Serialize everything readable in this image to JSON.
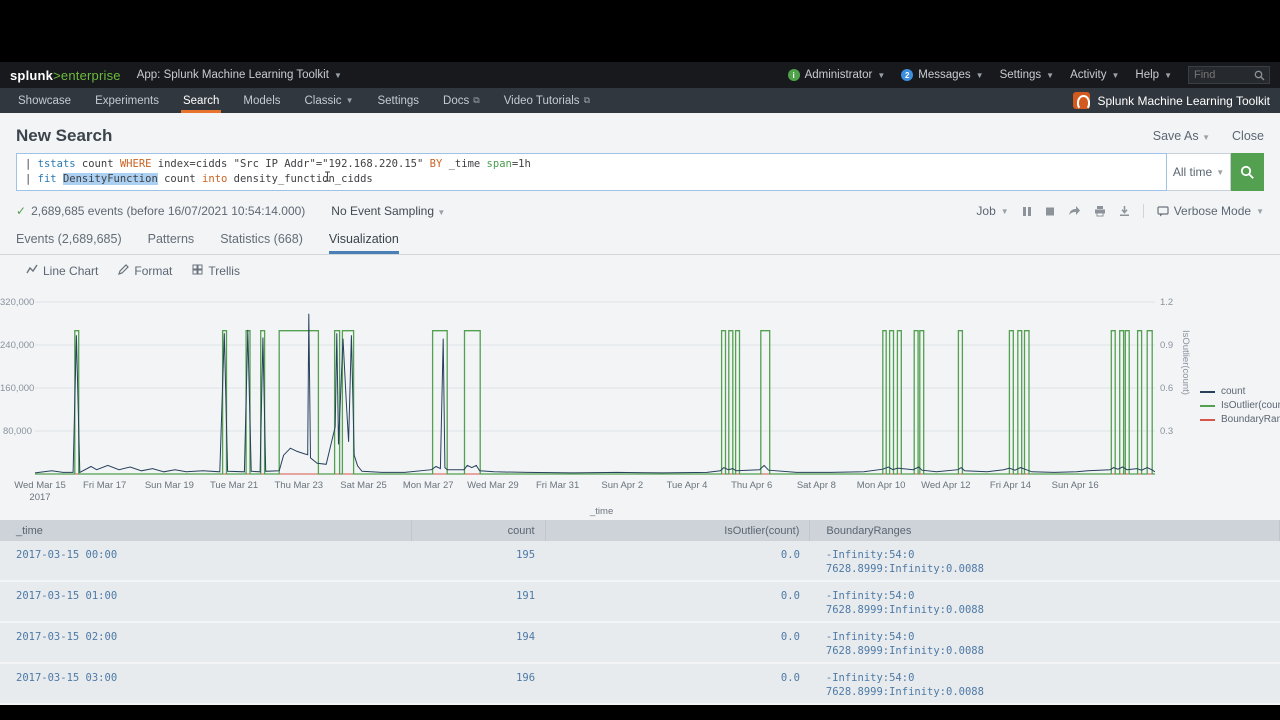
{
  "topbar": {
    "logo_main": "splunk",
    "logo_accent": ">enterprise",
    "app_menu": "App: Splunk Machine Learning Toolkit",
    "user_label": "Administrator",
    "messages_label": "Messages",
    "messages_count": "2",
    "settings_label": "Settings",
    "activity_label": "Activity",
    "help_label": "Help",
    "find_placeholder": "Find"
  },
  "navbar": {
    "items": [
      {
        "label": "Showcase",
        "active": false,
        "caret": false,
        "external": false
      },
      {
        "label": "Experiments",
        "active": false,
        "caret": false,
        "external": false
      },
      {
        "label": "Search",
        "active": true,
        "caret": false,
        "external": false
      },
      {
        "label": "Models",
        "active": false,
        "caret": false,
        "external": false
      },
      {
        "label": "Classic",
        "active": false,
        "caret": true,
        "external": false
      },
      {
        "label": "Settings",
        "active": false,
        "caret": false,
        "external": false
      },
      {
        "label": "Docs",
        "active": false,
        "caret": false,
        "external": true
      },
      {
        "label": "Video Tutorials",
        "active": false,
        "caret": false,
        "external": true
      }
    ],
    "brand": "Splunk Machine Learning Toolkit"
  },
  "page": {
    "title": "New Search",
    "save_as": "Save As",
    "close": "Close",
    "time_range": "All time",
    "events_summary": "2,689,685 events (before 16/07/2021 10:54:14.000)",
    "sampling": "No Event Sampling",
    "job_label": "Job",
    "verbose_label": "Verbose Mode",
    "tabs": [
      {
        "label": "Events (2,689,685)",
        "active": false
      },
      {
        "label": "Patterns",
        "active": false
      },
      {
        "label": "Statistics (668)",
        "active": false
      },
      {
        "label": "Visualization",
        "active": true
      }
    ],
    "controls": [
      {
        "label": "Line Chart",
        "icon": "line-chart-icon"
      },
      {
        "label": "Format",
        "icon": "pencil-icon"
      },
      {
        "label": "Trellis",
        "icon": "trellis-icon"
      }
    ]
  },
  "query": {
    "line1": [
      {
        "t": "| ",
        "c": "plain"
      },
      {
        "t": "tstats",
        "c": "cmd"
      },
      {
        "t": " count ",
        "c": "plain"
      },
      {
        "t": "WHERE",
        "c": "kw"
      },
      {
        "t": " index=cidds \"Src IP Addr\"=\"192.168.220.15\" ",
        "c": "plain"
      },
      {
        "t": "BY",
        "c": "kw"
      },
      {
        "t": " _time ",
        "c": "plain"
      },
      {
        "t": "span",
        "c": "fn"
      },
      {
        "t": "=1h",
        "c": "plain"
      }
    ],
    "line2": [
      {
        "t": "| ",
        "c": "plain"
      },
      {
        "t": "fit",
        "c": "cmd"
      },
      {
        "t": " ",
        "c": "plain"
      },
      {
        "t": "DensityFunction",
        "c": "sel"
      },
      {
        "t": " count ",
        "c": "plain"
      },
      {
        "t": "into",
        "c": "kw"
      },
      {
        "t": " density_function_cidds",
        "c": "plain"
      }
    ]
  },
  "chart_data": {
    "type": "line",
    "xlabel": "_time",
    "x_ticks": [
      "Wed Mar 15\n2017",
      "Fri Mar 17",
      "Sun Mar 19",
      "Tue Mar 21",
      "Thu Mar 23",
      "Sat Mar 25",
      "Mon Mar 27",
      "Wed Mar 29",
      "Fri Mar 31",
      "Sun Apr 2",
      "Tue Apr 4",
      "Thu Apr 6",
      "Sat Apr 8",
      "Mon Apr 10",
      "Wed Apr 12",
      "Fri Apr 14",
      "Sun Apr 16"
    ],
    "left_axis": {
      "ticks": [
        "320,000",
        "240,000",
        "160,000",
        "80,000"
      ],
      "tick_values": [
        320000,
        240000,
        160000,
        80000
      ],
      "max": 320000
    },
    "right_axis": {
      "label": "IsOutlier(count)",
      "ticks": [
        "1.2",
        "0.9",
        "0.6",
        "0.3"
      ],
      "tick_values": [
        1.2,
        0.9,
        0.6,
        0.3
      ]
    },
    "legend": [
      {
        "name": "count",
        "color": "#27405c"
      },
      {
        "name": "IsOutlier(count)",
        "color": "#53a051"
      },
      {
        "name": "BoundaryRanges",
        "color": "#d6564a"
      }
    ],
    "count_series_pct_kilocounts": [
      [
        0,
        2
      ],
      [
        1.5,
        6
      ],
      [
        2.5,
        3
      ],
      [
        3.4,
        3
      ],
      [
        3.7,
        258
      ],
      [
        4.0,
        3
      ],
      [
        5,
        14
      ],
      [
        5.5,
        8
      ],
      [
        6.5,
        16
      ],
      [
        7.5,
        8
      ],
      [
        8.5,
        13
      ],
      [
        9.5,
        6
      ],
      [
        10.5,
        10
      ],
      [
        11.5,
        4
      ],
      [
        12.5,
        8
      ],
      [
        13.5,
        4
      ],
      [
        15,
        6
      ],
      [
        16.5,
        4
      ],
      [
        16.9,
        262
      ],
      [
        17.2,
        5
      ],
      [
        18.7,
        4
      ],
      [
        19.0,
        268
      ],
      [
        19.3,
        5
      ],
      [
        20.1,
        4
      ],
      [
        20.35,
        254
      ],
      [
        20.6,
        5
      ],
      [
        21.8,
        6
      ],
      [
        22.2,
        35
      ],
      [
        22.8,
        48
      ],
      [
        23.4,
        42
      ],
      [
        24.0,
        38
      ],
      [
        24.35,
        36
      ],
      [
        24.45,
        298
      ],
      [
        24.6,
        30
      ],
      [
        25.2,
        20
      ],
      [
        26.0,
        18
      ],
      [
        26.8,
        88
      ],
      [
        26.95,
        262
      ],
      [
        27.1,
        55
      ],
      [
        27.5,
        252
      ],
      [
        27.8,
        130
      ],
      [
        28.0,
        60
      ],
      [
        28.25,
        258
      ],
      [
        28.5,
        35
      ],
      [
        28.8,
        15
      ],
      [
        29.2,
        5
      ],
      [
        31,
        3
      ],
      [
        33,
        3
      ],
      [
        35.4,
        8
      ],
      [
        35.8,
        14
      ],
      [
        36.2,
        10
      ],
      [
        36.45,
        252
      ],
      [
        36.6,
        12
      ],
      [
        36.8,
        8
      ],
      [
        38.3,
        8
      ],
      [
        38.6,
        16
      ],
      [
        39.0,
        12
      ],
      [
        39.4,
        16
      ],
      [
        39.7,
        6
      ],
      [
        41,
        4
      ],
      [
        44,
        3
      ],
      [
        48,
        2
      ],
      [
        52,
        3
      ],
      [
        56,
        2
      ],
      [
        60,
        3
      ],
      [
        61.2,
        6
      ],
      [
        61.5,
        12
      ],
      [
        61.9,
        8
      ],
      [
        62.3,
        10
      ],
      [
        62.6,
        6
      ],
      [
        64.7,
        8
      ],
      [
        65.1,
        16
      ],
      [
        65.5,
        7
      ],
      [
        68,
        3
      ],
      [
        71,
        3
      ],
      [
        74,
        4
      ],
      [
        75.7,
        9
      ],
      [
        76.2,
        13
      ],
      [
        76.6,
        8
      ],
      [
        77.0,
        11
      ],
      [
        78.4,
        8
      ],
      [
        78.9,
        13
      ],
      [
        79.2,
        7
      ],
      [
        80.5,
        4
      ],
      [
        82.4,
        8
      ],
      [
        82.7,
        12
      ],
      [
        83.0,
        6
      ],
      [
        85,
        4
      ],
      [
        86.5,
        8
      ],
      [
        87.0,
        11
      ],
      [
        87.5,
        7
      ],
      [
        88.0,
        12
      ],
      [
        88.5,
        8
      ],
      [
        89,
        4
      ],
      [
        91,
        3
      ],
      [
        93,
        4
      ],
      [
        94,
        6
      ],
      [
        96.0,
        8
      ],
      [
        96.3,
        12
      ],
      [
        96.7,
        9
      ],
      [
        97.1,
        13
      ],
      [
        97.5,
        8
      ],
      [
        98.4,
        10
      ],
      [
        98.8,
        7
      ],
      [
        99.3,
        12
      ],
      [
        99.7,
        8
      ],
      [
        100,
        4
      ]
    ],
    "outlier_pulses_pct": [
      [
        3.55,
        3.9
      ],
      [
        16.75,
        17.1
      ],
      [
        18.85,
        19.2
      ],
      [
        20.15,
        20.5
      ],
      [
        21.8,
        25.3
      ],
      [
        26.75,
        27.2
      ],
      [
        27.45,
        28.45
      ],
      [
        35.5,
        36.8
      ],
      [
        38.35,
        39.75
      ],
      [
        61.3,
        61.65
      ],
      [
        61.95,
        62.3
      ],
      [
        62.55,
        62.9
      ],
      [
        64.8,
        65.6
      ],
      [
        75.7,
        76.0
      ],
      [
        76.3,
        76.65
      ],
      [
        77.0,
        77.35
      ],
      [
        78.5,
        78.85
      ],
      [
        79.0,
        79.35
      ],
      [
        82.45,
        82.8
      ],
      [
        87.0,
        87.35
      ],
      [
        87.75,
        88.1
      ],
      [
        88.35,
        88.75
      ],
      [
        96.1,
        96.45
      ],
      [
        96.85,
        97.2
      ],
      [
        97.35,
        97.7
      ],
      [
        98.45,
        98.8
      ],
      [
        99.3,
        99.75
      ]
    ]
  },
  "table": {
    "columns": [
      "_time",
      "count",
      "IsOutlier(count)",
      "BoundaryRanges"
    ],
    "rows": [
      {
        "time": "2017-03-15 00:00",
        "count": "195",
        "outlier": "0.0",
        "boundary": [
          "-Infinity:54:0",
          "7628.8999:Infinity:0.0088"
        ]
      },
      {
        "time": "2017-03-15 01:00",
        "count": "191",
        "outlier": "0.0",
        "boundary": [
          "-Infinity:54:0",
          "7628.8999:Infinity:0.0088"
        ]
      },
      {
        "time": "2017-03-15 02:00",
        "count": "194",
        "outlier": "0.0",
        "boundary": [
          "-Infinity:54:0",
          "7628.8999:Infinity:0.0088"
        ]
      },
      {
        "time": "2017-03-15 03:00",
        "count": "196",
        "outlier": "0.0",
        "boundary": [
          "-Infinity:54:0",
          "7628.8999:Infinity:0.0088"
        ]
      }
    ]
  }
}
